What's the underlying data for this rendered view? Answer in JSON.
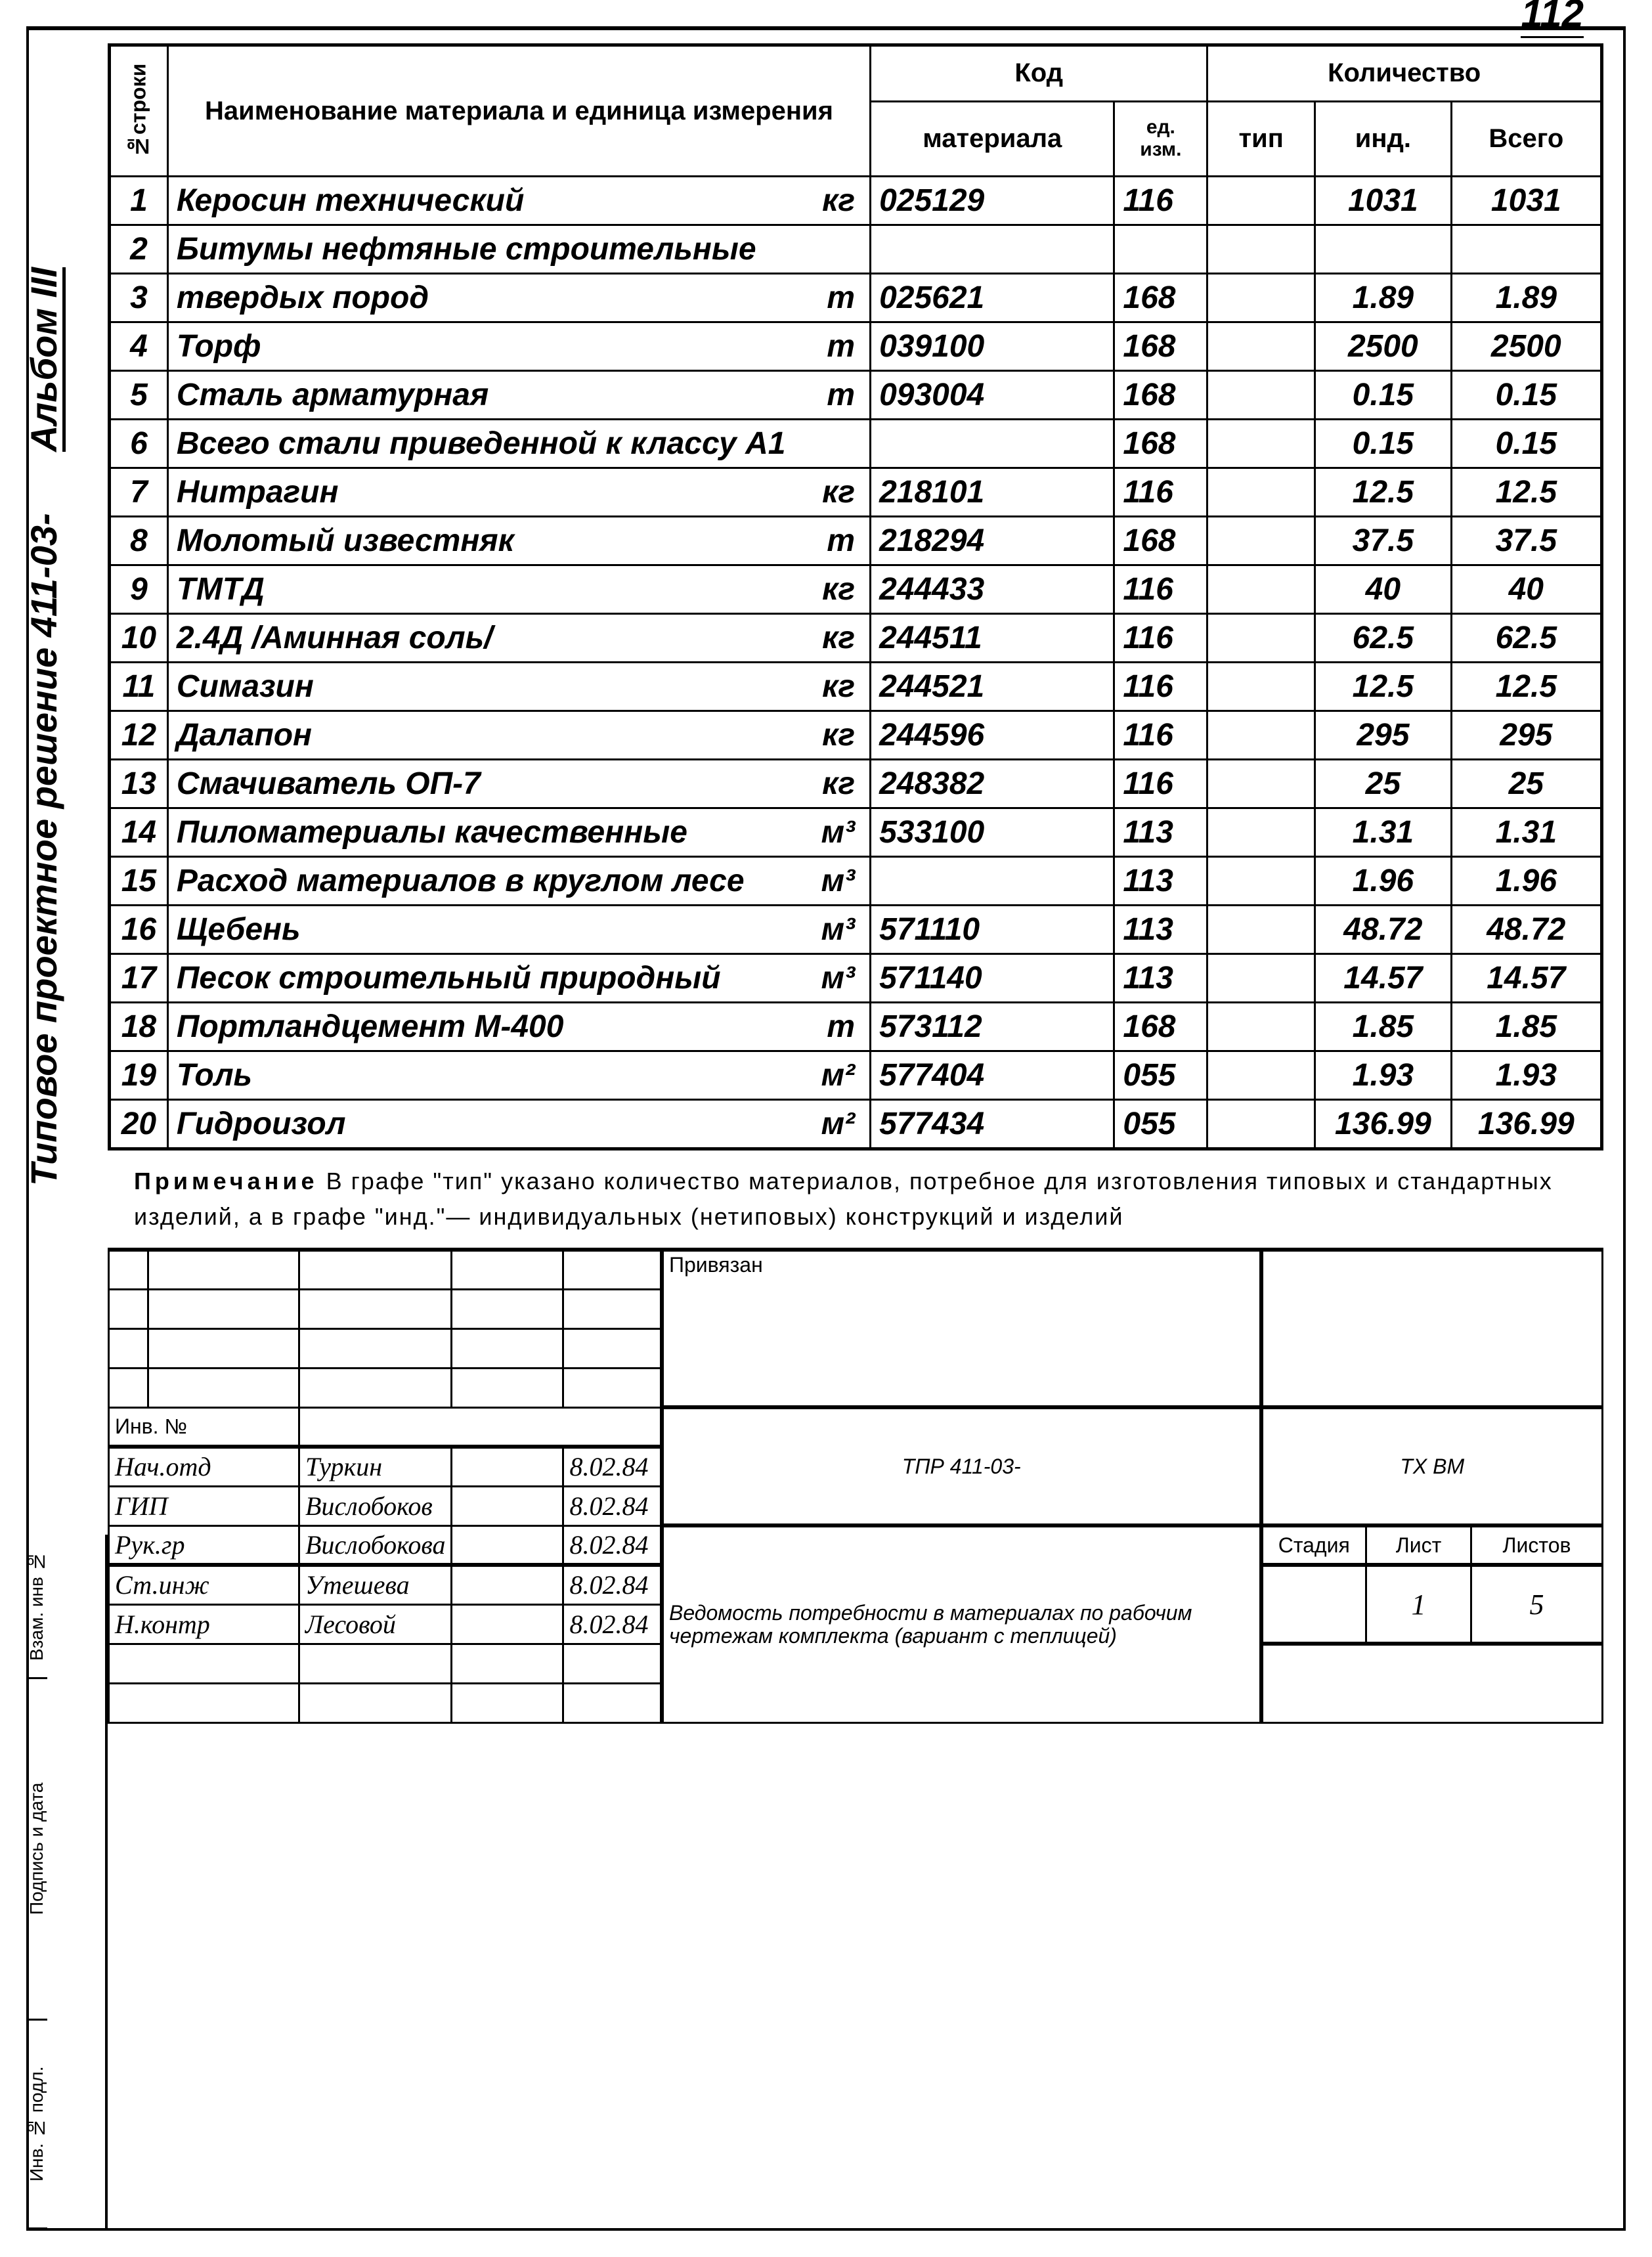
{
  "page_number": "112",
  "side_label": {
    "main": "Типовое проектное решение 411-03-",
    "album": "Альбом III"
  },
  "table": {
    "headers": {
      "row_num": "№строки",
      "name": "Наименование материала и единица измерения",
      "code": "Код",
      "code_mat": "материала",
      "code_unit": "ед. изм.",
      "qty": "Количество",
      "qty_tip": "тип",
      "qty_ind": "инд.",
      "qty_total": "Всего"
    },
    "rows": [
      {
        "n": "1",
        "name": "Керосин технический",
        "unit": "кг",
        "code": "025129",
        "ed": "116",
        "tip": "",
        "ind": "1031",
        "total": "1031"
      },
      {
        "n": "2",
        "name": "Битумы нефтяные строительные",
        "unit": "",
        "code": "",
        "ed": "",
        "tip": "",
        "ind": "",
        "total": ""
      },
      {
        "n": "3",
        "name": "твердых пород",
        "unit": "т",
        "code": "025621",
        "ed": "168",
        "tip": "",
        "ind": "1.89",
        "total": "1.89"
      },
      {
        "n": "4",
        "name": "Торф",
        "unit": "т",
        "code": "039100",
        "ed": "168",
        "tip": "",
        "ind": "2500",
        "total": "2500"
      },
      {
        "n": "5",
        "name": "Сталь арматурная",
        "unit": "т",
        "code": "093004",
        "ed": "168",
        "tip": "",
        "ind": "0.15",
        "total": "0.15"
      },
      {
        "n": "6",
        "name": "Всего стали приведенной к классу А1",
        "unit": "",
        "code": "",
        "ed": "168",
        "tip": "",
        "ind": "0.15",
        "total": "0.15"
      },
      {
        "n": "7",
        "name": "Нитрагин",
        "unit": "кг",
        "code": "218101",
        "ed": "116",
        "tip": "",
        "ind": "12.5",
        "total": "12.5"
      },
      {
        "n": "8",
        "name": "Молотый известняк",
        "unit": "т",
        "code": "218294",
        "ed": "168",
        "tip": "",
        "ind": "37.5",
        "total": "37.5"
      },
      {
        "n": "9",
        "name": "ТМТД",
        "unit": "кг",
        "code": "244433",
        "ed": "116",
        "tip": "",
        "ind": "40",
        "total": "40"
      },
      {
        "n": "10",
        "name": "2.4Д /Аминная соль/",
        "unit": "кг",
        "code": "244511",
        "ed": "116",
        "tip": "",
        "ind": "62.5",
        "total": "62.5"
      },
      {
        "n": "11",
        "name": "Симазин",
        "unit": "кг",
        "code": "244521",
        "ed": "116",
        "tip": "",
        "ind": "12.5",
        "total": "12.5"
      },
      {
        "n": "12",
        "name": "Далапон",
        "unit": "кг",
        "code": "244596",
        "ed": "116",
        "tip": "",
        "ind": "295",
        "total": "295"
      },
      {
        "n": "13",
        "name": "Смачиватель ОП-7",
        "unit": "кг",
        "code": "248382",
        "ed": "116",
        "tip": "",
        "ind": "25",
        "total": "25"
      },
      {
        "n": "14",
        "name": "Пиломатериалы качественные",
        "unit": "м³",
        "code": "533100",
        "ed": "113",
        "tip": "",
        "ind": "1.31",
        "total": "1.31"
      },
      {
        "n": "15",
        "name": "Расход материалов в круглом лесе",
        "unit": "м³",
        "code": "",
        "ed": "113",
        "tip": "",
        "ind": "1.96",
        "total": "1.96"
      },
      {
        "n": "16",
        "name": "Щебень",
        "unit": "м³",
        "code": "571110",
        "ed": "113",
        "tip": "",
        "ind": "48.72",
        "total": "48.72"
      },
      {
        "n": "17",
        "name": "Песок строительный природный",
        "unit": "м³",
        "code": "571140",
        "ed": "113",
        "tip": "",
        "ind": "14.57",
        "total": "14.57"
      },
      {
        "n": "18",
        "name": "Портландцемент М-400",
        "unit": "т",
        "code": "573112",
        "ed": "168",
        "tip": "",
        "ind": "1.85",
        "total": "1.85"
      },
      {
        "n": "19",
        "name": "Толь",
        "unit": "м²",
        "code": "577404",
        "ed": "055",
        "tip": "",
        "ind": "1.93",
        "total": "1.93"
      },
      {
        "n": "20",
        "name": "Гидроизол",
        "unit": "м²",
        "code": "577434",
        "ed": "055",
        "tip": "",
        "ind": "136.99",
        "total": "136.99"
      }
    ]
  },
  "note": {
    "label": "Примечание",
    "text": "В графе \"тип\" указано количество материалов, потребное для изготовления типовых и стандартных изделий, а в графе \"инд.\"— индивидуальных (нетиповых) конструкций и изделий"
  },
  "side_boxes": {
    "b1": "Взам. инв №",
    "b2": "Подпись и дата",
    "b3": "Инв. № подл."
  },
  "stamp": {
    "priv": "Привязан",
    "inv": "Инв. №",
    "roles": [
      {
        "role": "Нач.отд",
        "name": "Туркин",
        "sign": "",
        "date": "8.02.84"
      },
      {
        "role": "ГИП",
        "name": "Вислобоков",
        "sign": "",
        "date": "8.02.84"
      },
      {
        "role": "Рук.гр",
        "name": "Вислобокова",
        "sign": "",
        "date": "8.02.84"
      },
      {
        "role": "Ст.инж",
        "name": "Утешева",
        "sign": "",
        "date": "8.02.84"
      },
      {
        "role": "Н.контр",
        "name": "Лесовой",
        "sign": "",
        "date": "8.02.84"
      }
    ],
    "project_code": "ТПР 411-03-",
    "mark": "ТХ ВМ",
    "doc_title": "Ведомость потребности в материалах по рабочим чертежам комплекта (вариант с теплицей)",
    "headers": {
      "stage": "Стадия",
      "sheet": "Лист",
      "sheets": "Листов"
    },
    "sheet": "1",
    "sheets": "5"
  },
  "style": {
    "colors": {
      "border": "#000000",
      "bg": "#ffffff",
      "text": "#000000"
    },
    "fonts": {
      "hand": "Comic Sans MS, cursive",
      "print": "Arial, sans-serif"
    },
    "line_weights": {
      "outer": 5,
      "inner": 3,
      "heavy": 6
    }
  }
}
